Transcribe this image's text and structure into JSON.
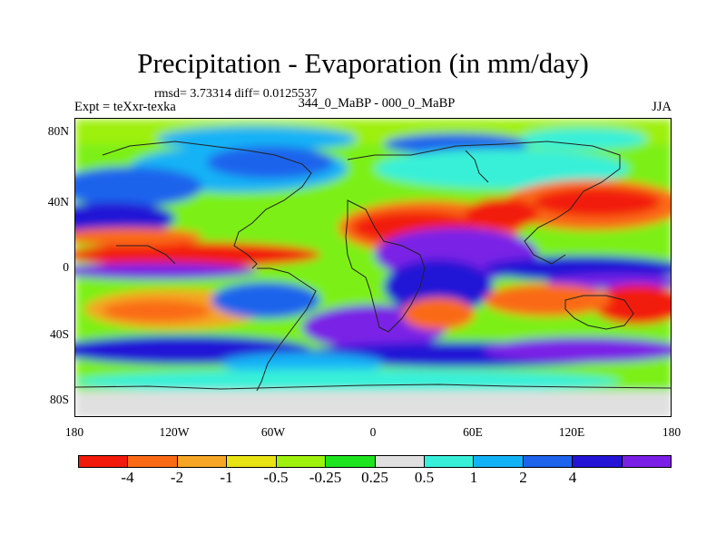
{
  "title": "Precipitation - Evaporation (in mm/day)",
  "stats": "rmsd= 3.73314 diff= 0.0125537",
  "experiment": "Expt = teXxr-texka",
  "comparison": "344_0_MaBP - 000_0_MaBP",
  "season": "JJA",
  "lat_ticks": [
    "80N",
    "40N",
    "0",
    "40S",
    "80S"
  ],
  "lon_ticks": [
    "180",
    "120W",
    "60W",
    "0",
    "60E",
    "120E",
    "180"
  ],
  "colorbar": {
    "labels": [
      "-4",
      "-2",
      "-1",
      "-0.5",
      "-0.25",
      "0.25",
      "0.5",
      "1",
      "2",
      "4"
    ],
    "colors": [
      "#f21a0a",
      "#fa6a14",
      "#f5a624",
      "#e8e313",
      "#9ef00d",
      "#1ee41e",
      "#e0e0e0",
      "#38f0d8",
      "#12b2f6",
      "#1d63ec",
      "#2414d6",
      "#7a20e6"
    ]
  },
  "colors": {
    "land_outline": "#222222",
    "ocean_gray": "#e0e0e0"
  }
}
